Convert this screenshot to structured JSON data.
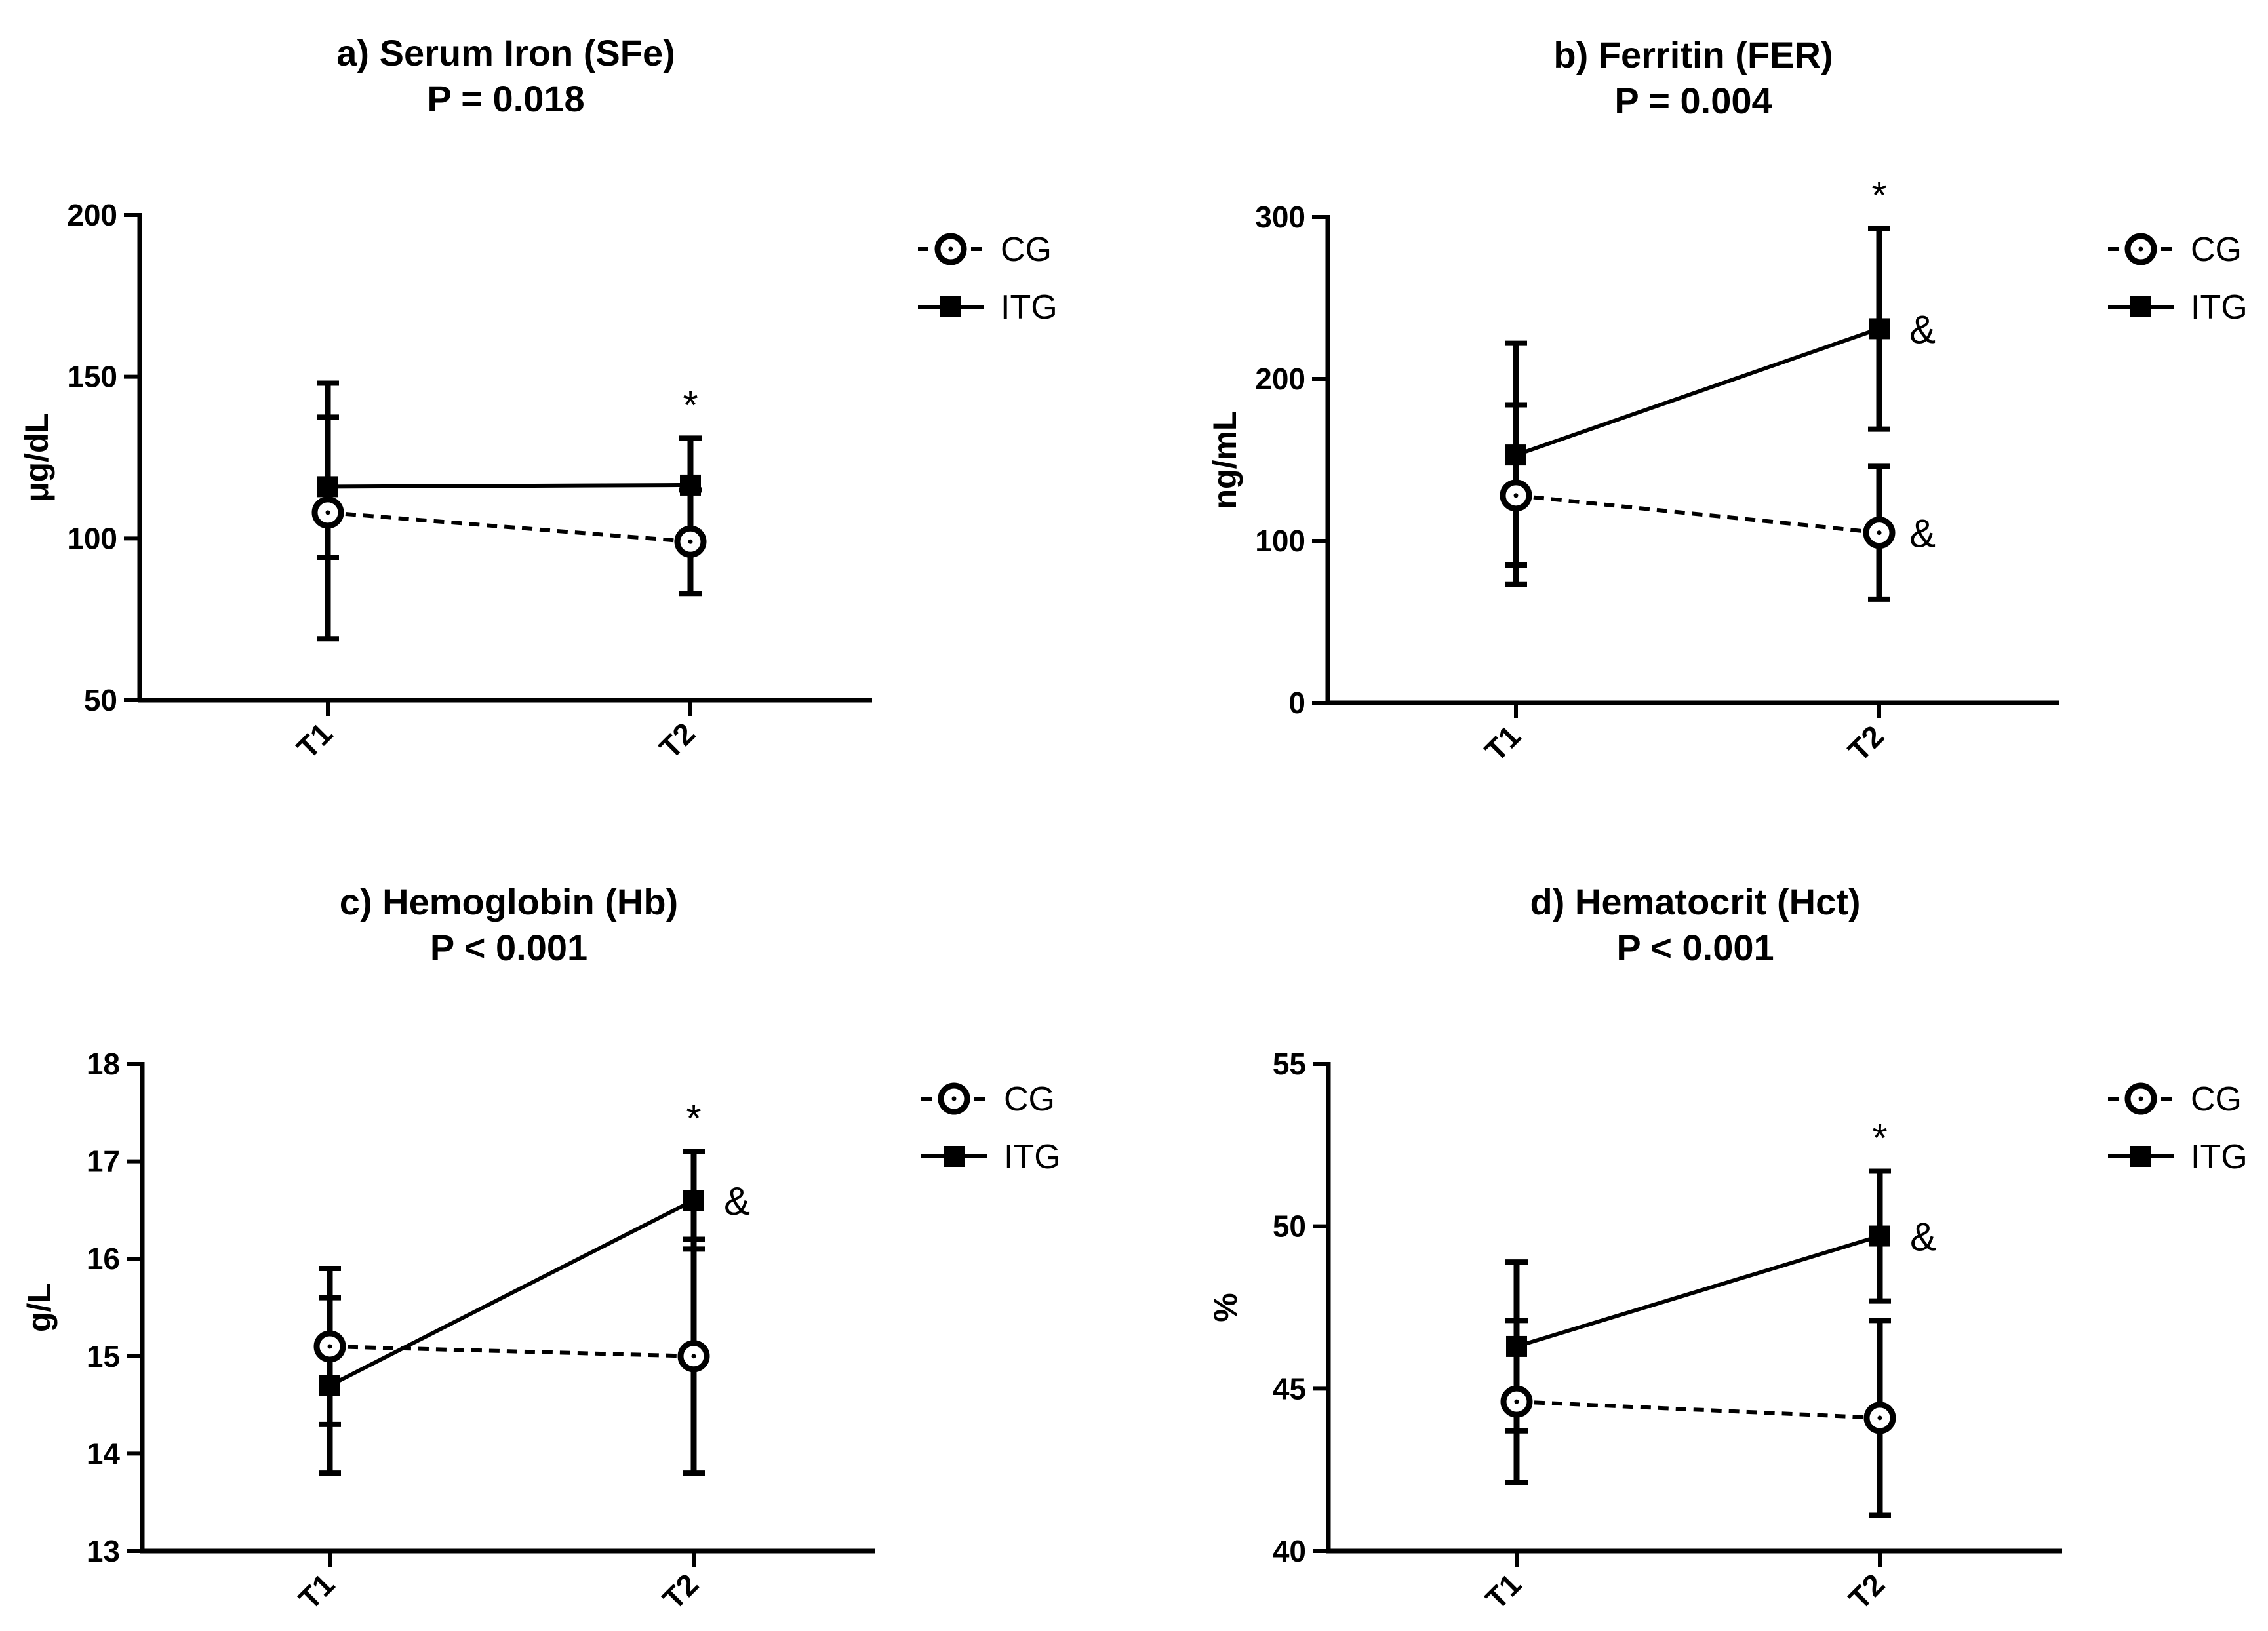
{
  "colors": {
    "ink": "#000000",
    "background": "#ffffff"
  },
  "chart_data": [
    {
      "type": "line",
      "title": "a) Serum Iron (SFe)",
      "subtitle": "P = 0.018",
      "ylabel": "μg/dL",
      "ylim": [
        50,
        200
      ],
      "yticks": [
        50,
        100,
        150,
        200
      ],
      "yticklabels": [
        "50",
        "100",
        "150",
        "200"
      ],
      "categories": [
        "T1",
        "T2"
      ],
      "legend": {
        "position": "top-right",
        "entries": [
          "CG",
          "ITG"
        ]
      },
      "series": [
        {
          "name": "CG",
          "line_style": "dashed",
          "marker": "open-circle",
          "values": [
            108,
            99
          ],
          "err_low": [
            69,
            83
          ],
          "err_high": [
            148,
            115
          ]
        },
        {
          "name": "ITG",
          "line_style": "solid",
          "marker": "filled-square",
          "values": [
            116,
            116.5
          ],
          "err_low": [
            94,
            102
          ],
          "err_high": [
            137.5,
            131
          ]
        }
      ],
      "annotations": [
        {
          "text": "*",
          "category": "T2",
          "anchor": "above",
          "value": 131
        }
      ]
    },
    {
      "type": "line",
      "title": "b) Ferritin (FER)",
      "subtitle": "P = 0.004",
      "ylabel": "ng/mL",
      "ylim": [
        0,
        300
      ],
      "yticks": [
        0,
        100,
        200,
        300
      ],
      "yticklabels": [
        "0",
        "100",
        "200",
        "300"
      ],
      "categories": [
        "T1",
        "T2"
      ],
      "legend": {
        "position": "top-right",
        "entries": [
          "CG",
          "ITG"
        ]
      },
      "series": [
        {
          "name": "CG",
          "line_style": "dashed",
          "marker": "open-circle",
          "values": [
            128,
            105
          ],
          "err_low": [
            73,
            64
          ],
          "err_high": [
            184,
            146
          ]
        },
        {
          "name": "ITG",
          "line_style": "solid",
          "marker": "filled-square",
          "values": [
            153,
            231
          ],
          "err_low": [
            85,
            169
          ],
          "err_high": [
            222,
            293
          ]
        }
      ],
      "annotations": [
        {
          "text": "*",
          "category": "T2",
          "anchor": "above",
          "value": 293
        },
        {
          "text": "&",
          "category": "T2",
          "anchor": "right",
          "value": 231
        },
        {
          "text": "&",
          "category": "T2",
          "anchor": "right",
          "value": 105
        }
      ]
    },
    {
      "type": "line",
      "title": "c) Hemoglobin (Hb)",
      "subtitle": "P < 0.001",
      "ylabel": "g/L",
      "ylim": [
        13,
        18
      ],
      "yticks": [
        13,
        14,
        15,
        16,
        17,
        18
      ],
      "yticklabels": [
        "13",
        "14",
        "15",
        "16",
        "17",
        "18"
      ],
      "categories": [
        "T1",
        "T2"
      ],
      "legend": {
        "position": "top-right",
        "entries": [
          "CG",
          "ITG"
        ]
      },
      "series": [
        {
          "name": "CG",
          "line_style": "dashed",
          "marker": "open-circle",
          "values": [
            15.1,
            15.0
          ],
          "err_low": [
            14.3,
            13.8
          ],
          "err_high": [
            15.9,
            16.2
          ]
        },
        {
          "name": "ITG",
          "line_style": "solid",
          "marker": "filled-square",
          "values": [
            14.7,
            16.6
          ],
          "err_low": [
            13.8,
            16.1
          ],
          "err_high": [
            15.6,
            17.1
          ]
        }
      ],
      "annotations": [
        {
          "text": "*",
          "category": "T2",
          "anchor": "above",
          "value": 17.1
        },
        {
          "text": "&",
          "category": "T2",
          "anchor": "right",
          "value": 16.6
        }
      ]
    },
    {
      "type": "line",
      "title": "d) Hematocrit (Hct)",
      "subtitle": "P < 0.001",
      "ylabel": "%",
      "ylim": [
        40,
        55
      ],
      "yticks": [
        40,
        45,
        50,
        55
      ],
      "yticklabels": [
        "40",
        "45",
        "50",
        "55"
      ],
      "categories": [
        "T1",
        "T2"
      ],
      "legend": {
        "position": "top-right",
        "entries": [
          "CG",
          "ITG"
        ]
      },
      "series": [
        {
          "name": "CG",
          "line_style": "dashed",
          "marker": "open-circle",
          "values": [
            44.6,
            44.1
          ],
          "err_low": [
            42.1,
            41.1
          ],
          "err_high": [
            47.1,
            47.1
          ]
        },
        {
          "name": "ITG",
          "line_style": "solid",
          "marker": "filled-square",
          "values": [
            46.3,
            49.7
          ],
          "err_low": [
            43.7,
            47.7
          ],
          "err_high": [
            48.9,
            51.7
          ]
        }
      ],
      "annotations": [
        {
          "text": "*",
          "category": "T2",
          "anchor": "above",
          "value": 51.7
        },
        {
          "text": "&",
          "category": "T2",
          "anchor": "right",
          "value": 49.7
        }
      ]
    }
  ]
}
